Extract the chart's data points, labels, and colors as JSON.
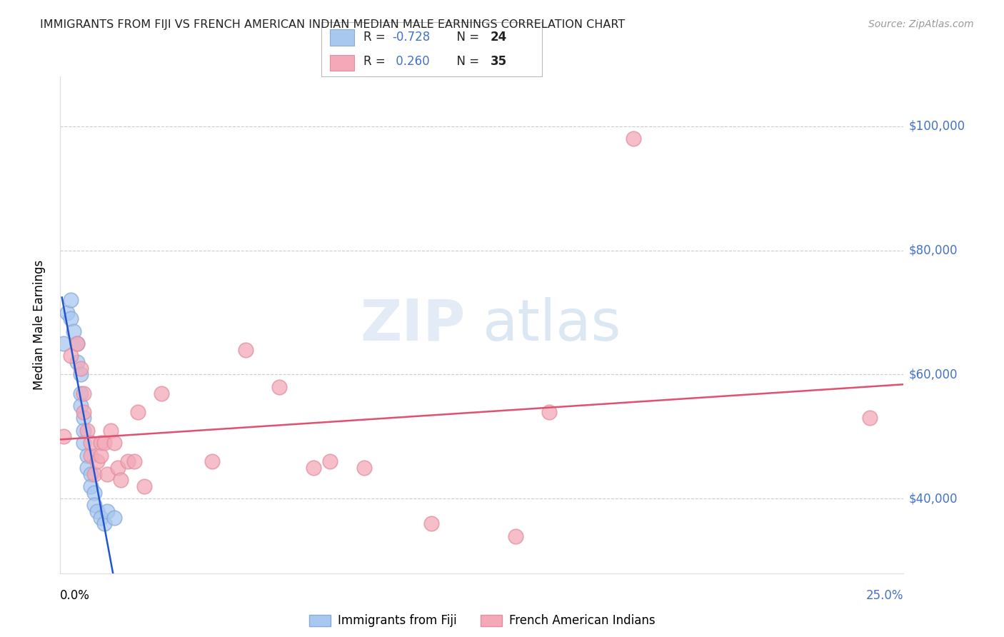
{
  "title": "IMMIGRANTS FROM FIJI VS FRENCH AMERICAN INDIAN MEDIAN MALE EARNINGS CORRELATION CHART",
  "source": "Source: ZipAtlas.com",
  "ylabel": "Median Male Earnings",
  "ytick_labels": [
    "$40,000",
    "$60,000",
    "$80,000",
    "$100,000"
  ],
  "ytick_values": [
    40000,
    60000,
    80000,
    100000
  ],
  "ylim": [
    28000,
    108000
  ],
  "xlim": [
    0.0,
    0.25
  ],
  "legend_fiji_r": "R = -0.728",
  "legend_fiji_n": "N = 24",
  "legend_french_r": "R =  0.260",
  "legend_french_n": "N = 35",
  "fiji_color": "#a8c8f0",
  "french_color": "#f4a8b8",
  "fiji_edge_color": "#88aad8",
  "french_edge_color": "#e090a0",
  "fiji_line_color": "#2255cc",
  "french_line_color": "#e05070",
  "label_color": "#4472c4",
  "watermark_zip": "ZIP",
  "watermark_atlas": "atlas",
  "fiji_label": "Immigrants from Fiji",
  "french_label": "French American Indians",
  "fiji_x": [
    0.001,
    0.002,
    0.003,
    0.003,
    0.004,
    0.005,
    0.005,
    0.006,
    0.006,
    0.006,
    0.007,
    0.007,
    0.007,
    0.008,
    0.008,
    0.009,
    0.009,
    0.01,
    0.01,
    0.011,
    0.012,
    0.013,
    0.014,
    0.016
  ],
  "fiji_y": [
    65000,
    70000,
    72000,
    69000,
    67000,
    65000,
    62000,
    60000,
    57000,
    55000,
    53000,
    51000,
    49000,
    47000,
    45000,
    44000,
    42000,
    41000,
    39000,
    38000,
    37000,
    36000,
    38000,
    37000
  ],
  "french_x": [
    0.001,
    0.003,
    0.005,
    0.006,
    0.007,
    0.007,
    0.008,
    0.009,
    0.009,
    0.01,
    0.011,
    0.012,
    0.012,
    0.013,
    0.014,
    0.015,
    0.016,
    0.017,
    0.018,
    0.02,
    0.022,
    0.023,
    0.025,
    0.03,
    0.045,
    0.055,
    0.065,
    0.075,
    0.08,
    0.09,
    0.11,
    0.135,
    0.145,
    0.17,
    0.24
  ],
  "french_y": [
    50000,
    63000,
    65000,
    61000,
    57000,
    54000,
    51000,
    47000,
    49000,
    44000,
    46000,
    49000,
    47000,
    49000,
    44000,
    51000,
    49000,
    45000,
    43000,
    46000,
    46000,
    54000,
    42000,
    57000,
    46000,
    64000,
    58000,
    45000,
    46000,
    45000,
    36000,
    34000,
    54000,
    98000,
    53000
  ],
  "background_color": "#ffffff",
  "grid_color": "#cccccc",
  "grid_style": "--"
}
